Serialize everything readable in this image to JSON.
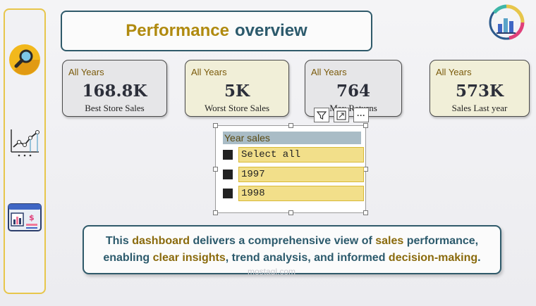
{
  "colors": {
    "accent_gold": "#e7c64b",
    "teal": "#2c5a6c",
    "gold_text": "#b08a0f"
  },
  "sidebar": {
    "items": [
      {
        "name": "search-icon"
      },
      {
        "name": "line-chart-icon"
      },
      {
        "name": "sales-dashboard-icon"
      }
    ]
  },
  "header": {
    "title_word1": "Performance",
    "title_word2": "overview"
  },
  "cards": [
    {
      "label": "All Years",
      "value": "168.8K",
      "caption": "Best Store Sales",
      "bg": "#e6e6e8"
    },
    {
      "label": "All Years",
      "value": "5K",
      "caption": "Worst Store Sales",
      "bg": "#f1efd8"
    },
    {
      "label": "All Years",
      "value": "764",
      "caption": "Max Returns",
      "bg": "#e6e6e8"
    },
    {
      "label": "All Years",
      "value": "573K",
      "caption": "Sales Last year",
      "bg": "#f1efd8"
    }
  ],
  "visual_toolbar": {
    "icons": [
      "filter-icon",
      "focus-mode-icon",
      "more-options-icon"
    ],
    "more_label": "···"
  },
  "slicer": {
    "title": "Year sales",
    "options": [
      "Select all",
      "1997",
      "1998"
    ]
  },
  "description": {
    "p1": "This ",
    "h1": "dashboard",
    "p2": " delivers a comprehensive view of ",
    "h2": "sales",
    "p3": " performance,",
    "p4": "enabling ",
    "h3": "clear insights",
    "p5": ", trend analysis, and informed ",
    "h4": "decision-making",
    "p6": "."
  },
  "watermark": "mostaql.com"
}
